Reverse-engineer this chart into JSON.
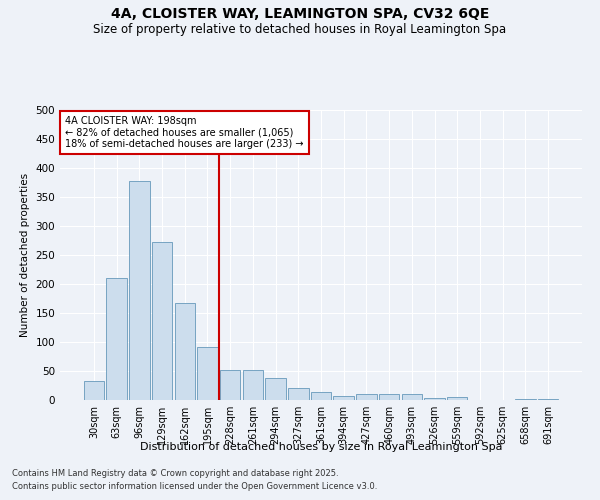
{
  "title": "4A, CLOISTER WAY, LEAMINGTON SPA, CV32 6QE",
  "subtitle": "Size of property relative to detached houses in Royal Leamington Spa",
  "xlabel": "Distribution of detached houses by size in Royal Leamington Spa",
  "ylabel": "Number of detached properties",
  "footnote1": "Contains HM Land Registry data © Crown copyright and database right 2025.",
  "footnote2": "Contains public sector information licensed under the Open Government Licence v3.0.",
  "bar_color": "#ccdded",
  "bar_edge_color": "#6699bb",
  "background_color": "#eef2f8",
  "grid_color": "#ffffff",
  "vline_color": "#cc0000",
  "vline_x": 5.5,
  "annotation_text": "4A CLOISTER WAY: 198sqm\n← 82% of detached houses are smaller (1,065)\n18% of semi-detached houses are larger (233) →",
  "annotation_box_facecolor": "#ffffff",
  "annotation_box_edgecolor": "#cc0000",
  "categories": [
    "30sqm",
    "63sqm",
    "96sqm",
    "129sqm",
    "162sqm",
    "195sqm",
    "228sqm",
    "261sqm",
    "294sqm",
    "327sqm",
    "361sqm",
    "394sqm",
    "427sqm",
    "460sqm",
    "493sqm",
    "526sqm",
    "559sqm",
    "592sqm",
    "625sqm",
    "658sqm",
    "691sqm"
  ],
  "values": [
    32,
    210,
    378,
    272,
    168,
    92,
    51,
    51,
    38,
    20,
    13,
    7,
    11,
    11,
    10,
    4,
    5,
    0,
    0,
    2,
    1
  ],
  "ylim": [
    0,
    500
  ],
  "yticks": [
    0,
    50,
    100,
    150,
    200,
    250,
    300,
    350,
    400,
    450,
    500
  ],
  "title_fontsize": 10,
  "subtitle_fontsize": 8.5,
  "xlabel_fontsize": 8,
  "ylabel_fontsize": 7.5,
  "xtick_fontsize": 7,
  "ytick_fontsize": 7.5,
  "annotation_fontsize": 7,
  "footnote_fontsize": 6
}
